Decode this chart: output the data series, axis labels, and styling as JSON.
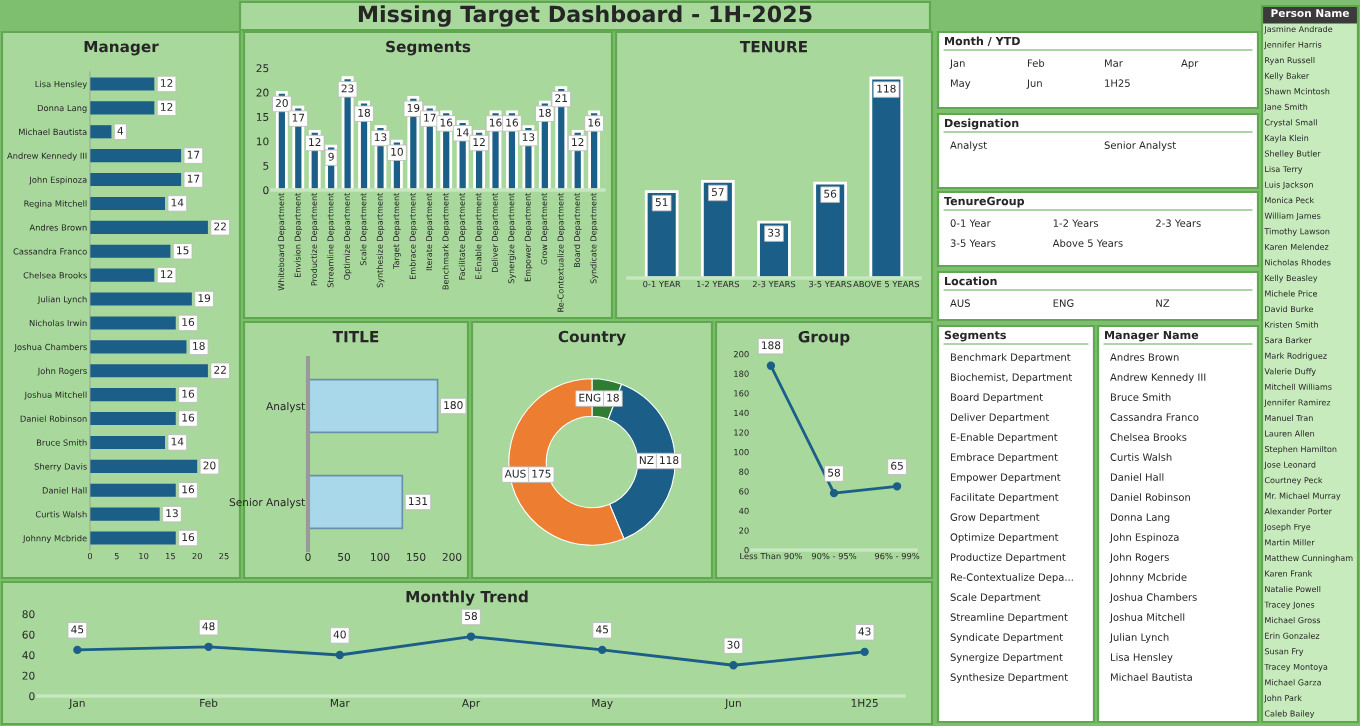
{
  "chart_data": [
    {
      "type": "other",
      "title": "Missing Target Dashboard - 1H-2025"
    },
    {
      "type": "bar",
      "title": "Manager",
      "orientation": "horizontal",
      "color": "#1b5e87",
      "data_labels": true,
      "xlim": [
        0,
        25
      ],
      "xticks": [
        0,
        5,
        10,
        15,
        20,
        25
      ],
      "categories": [
        "Lisa Hensley",
        "Donna Lang",
        "Michael Bautista",
        "Andrew Kennedy III",
        "John Espinoza",
        "Regina Mitchell",
        "Andres Brown",
        "Cassandra Franco",
        "Chelsea Brooks",
        "Julian Lynch",
        "Nicholas Irwin",
        "Joshua Chambers",
        "John Rogers",
        "Joshua Mitchell",
        "Daniel Robinson",
        "Bruce Smith",
        "Sherry Davis",
        "Daniel Hall",
        "Curtis Walsh",
        "Johnny Mcbride"
      ],
      "values": [
        12,
        12,
        4,
        17,
        17,
        14,
        22,
        15,
        12,
        19,
        16,
        18,
        22,
        16,
        16,
        14,
        20,
        16,
        13,
        16
      ]
    },
    {
      "type": "bar",
      "title": "Segments",
      "color": "#1b5e87",
      "data_labels": true,
      "ylim": [
        0,
        25
      ],
      "yticks": [
        0,
        5,
        10,
        15,
        20,
        25
      ],
      "categories": [
        "Whiteboard Department",
        "Envision Department",
        "Productize Department",
        "Streamline Department",
        "Optimize Department",
        "Scale Department",
        "Synthesize Department",
        "Target Department",
        "Embrace Department",
        "Iterate Department",
        "Benchmark Department",
        "Facilitate Department",
        "E-Enable Department",
        "Deliver Department",
        "Synergize Department",
        "Empower Department",
        "Grow Department",
        "Re-Contextualize Department",
        "Board Department",
        "Syndicate Department"
      ],
      "values": [
        20,
        17,
        12,
        9,
        23,
        18,
        13,
        10,
        19,
        17,
        16,
        14,
        12,
        16,
        16,
        13,
        18,
        21,
        12,
        16
      ]
    },
    {
      "type": "bar",
      "title": "TENURE",
      "color": "#1b5e87",
      "data_labels": true,
      "tick_labels": "x",
      "categories": [
        "0-1 YEAR",
        "1-2 YEARS",
        "2-3 YEARS",
        "3-5 YEARS",
        "ABOVE 5 YEARS"
      ],
      "values": [
        51,
        57,
        33,
        56,
        118
      ]
    },
    {
      "type": "bar",
      "title": "TITLE",
      "orientation": "horizontal",
      "color": "#a8d8ea",
      "data_labels": true,
      "xlim": [
        0,
        200
      ],
      "xticks": [
        0,
        50,
        100,
        150,
        200
      ],
      "categories": [
        "Analyst",
        "Senior Analyst"
      ],
      "values": [
        180,
        131
      ]
    },
    {
      "type": "donut",
      "title": "Country",
      "data_labels": true,
      "categories": [
        "ENG",
        "NZ",
        "AUS"
      ],
      "values": [
        18,
        118,
        175
      ],
      "colors": [
        "#2e7d32",
        "#1b5e87",
        "#ed7d31"
      ]
    },
    {
      "type": "line",
      "title": "Group",
      "color": "#1b5e87",
      "marker": "circle",
      "data_labels": true,
      "ylim": [
        0,
        200
      ],
      "yticks": [
        0,
        20,
        40,
        60,
        80,
        100,
        120,
        140,
        160,
        180,
        200
      ],
      "categories": [
        "Less Than 90%",
        "90% - 95%",
        "96% - 99%"
      ],
      "values": [
        188,
        58,
        65
      ]
    },
    {
      "type": "line",
      "title": "Monthly Trend",
      "color": "#1b5e87",
      "marker": "circle",
      "data_labels": true,
      "ylim": [
        0,
        80
      ],
      "yticks": [
        0,
        20,
        40,
        60,
        80
      ],
      "categories": [
        "Jan",
        "Feb",
        "Mar",
        "Apr",
        "May",
        "Jun",
        "1H25"
      ],
      "values": [
        45,
        48,
        40,
        58,
        45,
        30,
        43
      ]
    },
    {
      "type": "other",
      "title": "Month / YTD",
      "annotations": [
        "Jan",
        "Feb",
        "Mar",
        "Apr",
        "May",
        "Jun",
        "1H25"
      ]
    },
    {
      "type": "other",
      "title": "Designation",
      "annotations": [
        "Analyst",
        "Senior Analyst"
      ]
    },
    {
      "type": "other",
      "title": "TenureGroup",
      "annotations": [
        "0-1 Year",
        "1-2 Years",
        "2-3 Years",
        "3-5 Years",
        "Above 5 Years"
      ]
    },
    {
      "type": "other",
      "title": "Location",
      "annotations": [
        "AUS",
        "ENG",
        "NZ"
      ]
    },
    {
      "type": "other",
      "title": "Segments",
      "annotations": [
        "Benchmark Department",
        "Biochemist, Department",
        "Board Department",
        "Deliver Department",
        "E-Enable Department",
        "Embrace Department",
        "Empower Department",
        "Facilitate Department",
        "Grow Department",
        "Optimize Department",
        "Productize Department",
        "Re-Contextualize Depa...",
        "Scale Department",
        "Streamline Department",
        "Syndicate Department",
        "Synergize Department",
        "Synthesize Department"
      ]
    },
    {
      "type": "other",
      "title": "Manager Name",
      "annotations": [
        "Andres Brown",
        "Andrew Kennedy III",
        "Bruce Smith",
        "Cassandra Franco",
        "Chelsea Brooks",
        "Curtis Walsh",
        "Daniel Hall",
        "Daniel Robinson",
        "Donna Lang",
        "John Espinoza",
        "John Rogers",
        "Johnny Mcbride",
        "Joshua Chambers",
        "Joshua Mitchell",
        "Julian Lynch",
        "Lisa Hensley",
        "Michael Bautista"
      ]
    },
    {
      "type": "other",
      "title": "Person Name",
      "annotations": [
        "Jasmine Andrade",
        "Jennifer Harris",
        "Ryan Russell",
        "Kelly Baker",
        "Shawn Mcintosh",
        "Jane Smith",
        "Crystal Small",
        "Kayla Klein",
        "Shelley Butler",
        "Lisa Terry",
        "Luis Jackson",
        "Monica Peck",
        "William James",
        "Timothy Lawson",
        "Karen Melendez",
        "Nicholas Rhodes",
        "Kelly Beasley",
        "Michele Price",
        "David Burke",
        "Kristen Smith",
        "Sara Barker",
        "Mark Rodriguez",
        "Valerie Duffy",
        "Mitchell Williams",
        "Jennifer Ramirez",
        "Manuel Tran",
        "Lauren Allen",
        "Stephen Hamilton",
        "Jose Leonard",
        "Courtney Peck",
        "Mr. Michael Murray",
        "Alexander Porter",
        "Joseph Frye",
        "Martin Miller",
        "Matthew Cunningham",
        "Karen Frank",
        "Natalie Powell",
        "Tracey Jones",
        "Michael Gross",
        "Erin Gonzalez",
        "Susan Fry",
        "Tracey Montoya",
        "Michael Garza",
        "John Park",
        "Caleb Bailey"
      ]
    }
  ]
}
